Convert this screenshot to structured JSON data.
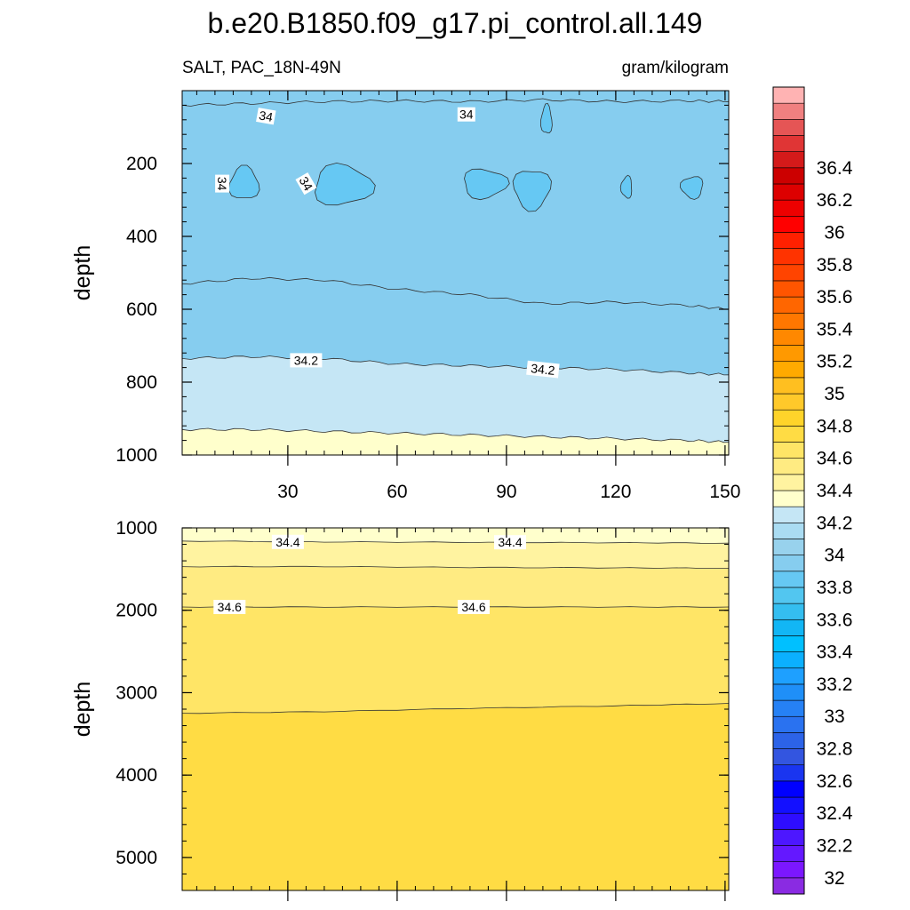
{
  "figure": {
    "title": "b.e20.B1850.f09_g17.pi_control.all.149",
    "left_string": "SALT, PAC_18N-49N",
    "right_string": "gram/kilogram"
  },
  "chart_data": [
    {
      "type": "heatmap",
      "panel": "upper",
      "variable": "SALT",
      "region": "PAC_18N-49N",
      "units": "gram/kilogram",
      "xlabel": "",
      "ylabel": "depth",
      "xlim": [
        1,
        151
      ],
      "ylim": [
        1000,
        0
      ],
      "x_ticks": [
        30,
        60,
        90,
        120,
        150
      ],
      "y_ticks": [
        200,
        400,
        600,
        800,
        1000
      ],
      "x_ticks_labeled": true,
      "contour_lines": [
        {
          "level": 34.0,
          "x": [
            1,
            20,
            40,
            60,
            80,
            100,
            120,
            140,
            151
          ],
          "depth": [
            40,
            35,
            30,
            28,
            30,
            25,
            30,
            28,
            30
          ]
        },
        {
          "level": 33.9,
          "x": [
            1,
            20,
            40,
            60,
            80,
            100,
            120,
            140,
            151
          ],
          "depth": [
            530,
            515,
            520,
            545,
            560,
            585,
            580,
            590,
            600
          ]
        },
        {
          "level": 34.2,
          "x": [
            1,
            20,
            40,
            60,
            80,
            100,
            120,
            140,
            151
          ],
          "depth": [
            735,
            730,
            735,
            750,
            755,
            760,
            765,
            775,
            780
          ]
        },
        {
          "level": 34.3,
          "x": [
            1,
            20,
            40,
            60,
            80,
            100,
            120,
            140,
            151
          ],
          "depth": [
            930,
            930,
            935,
            940,
            945,
            950,
            955,
            960,
            965
          ]
        }
      ],
      "fill_bands": [
        {
          "value": 33.9,
          "from_depth": 0,
          "to_line": 1
        },
        {
          "value": 33.95,
          "from_line": 1,
          "to_line": 2
        },
        {
          "value": 34.25,
          "from_line": 2,
          "to_line": 3
        },
        {
          "value": 34.35,
          "from_line": 3,
          "to_depth": 1000
        }
      ],
      "contour_labels": [
        {
          "text": "34",
          "x": 24,
          "depth": 70,
          "angle": 10
        },
        {
          "text": "34",
          "x": 79,
          "depth": 65,
          "angle": 0
        },
        {
          "text": "34",
          "x": 12,
          "depth": 255,
          "angle": 90
        },
        {
          "text": "34",
          "x": 35,
          "depth": 255,
          "angle": 60
        },
        {
          "text": "34.2",
          "x": 35,
          "depth": 740,
          "angle": 0
        },
        {
          "text": "34.2",
          "x": 100,
          "depth": 765,
          "angle": 6
        }
      ],
      "patches": [
        {
          "value": 33.85,
          "x": 18,
          "depth": 255,
          "rx": 4,
          "rdepth": 45
        },
        {
          "value": 33.85,
          "x": 45,
          "depth": 260,
          "rx": 8,
          "rdepth": 55
        },
        {
          "value": 33.85,
          "x": 84,
          "depth": 255,
          "rx": 6,
          "rdepth": 40
        },
        {
          "value": 33.85,
          "x": 97,
          "depth": 270,
          "rx": 5,
          "rdepth": 55
        },
        {
          "value": 33.85,
          "x": 141,
          "depth": 265,
          "rx": 3,
          "rdepth": 30
        },
        {
          "value": 33.85,
          "x": 123,
          "depth": 265,
          "rx": 1.5,
          "rdepth": 30
        },
        {
          "value": 33.85,
          "x": 101,
          "depth": 80,
          "rx": 1.5,
          "rdepth": 40
        }
      ]
    },
    {
      "type": "heatmap",
      "panel": "lower",
      "variable": "SALT",
      "region": "PAC_18N-49N",
      "units": "gram/kilogram",
      "xlabel": "",
      "ylabel": "depth",
      "xlim": [
        1,
        151
      ],
      "ylim": [
        5400,
        1000
      ],
      "x_ticks": [
        30,
        60,
        90,
        120,
        150
      ],
      "y_ticks": [
        1000,
        2000,
        3000,
        4000,
        5000
      ],
      "x_ticks_labeled": false,
      "contour_lines": [
        {
          "level": 34.4,
          "x": [
            1,
            40,
            80,
            120,
            151
          ],
          "depth": [
            1160,
            1170,
            1175,
            1180,
            1185
          ]
        },
        {
          "level": 34.5,
          "x": [
            1,
            40,
            80,
            120,
            151
          ],
          "depth": [
            1470,
            1470,
            1480,
            1485,
            1490
          ]
        },
        {
          "level": 34.6,
          "x": [
            1,
            40,
            80,
            120,
            151
          ],
          "depth": [
            1960,
            1960,
            1960,
            1960,
            1960
          ]
        },
        {
          "level": 34.7,
          "x": [
            1,
            40,
            80,
            120,
            151
          ],
          "depth": [
            3250,
            3230,
            3190,
            3160,
            3130
          ]
        }
      ],
      "fill_bands": [
        {
          "value": 34.35,
          "from_depth": 1000,
          "to_line": 0
        },
        {
          "value": 34.45,
          "from_line": 0,
          "to_line": 1
        },
        {
          "value": 34.55,
          "from_line": 1,
          "to_line": 2
        },
        {
          "value": 34.65,
          "from_line": 2,
          "to_line": 3
        },
        {
          "value": 34.75,
          "from_line": 3,
          "to_depth": 5400
        }
      ],
      "contour_labels": [
        {
          "text": "34.4",
          "x": 30,
          "depth": 1170,
          "angle": 0
        },
        {
          "text": "34.4",
          "x": 91,
          "depth": 1175,
          "angle": 0
        },
        {
          "text": "34.6",
          "x": 14,
          "depth": 1960,
          "angle": 0
        },
        {
          "text": "34.6",
          "x": 81,
          "depth": 1960,
          "angle": 0
        }
      ]
    }
  ],
  "colorbar": {
    "min": 31.9,
    "step": 0.1,
    "colors": [
      "#8a2be2",
      "#7b17ff",
      "#6418ff",
      "#4d17ff",
      "#2e0dff",
      "#1310ff",
      "#0000ff",
      "#1a35f0",
      "#3355e0",
      "#2c63e8",
      "#2a72f0",
      "#2681f5",
      "#1f8ff8",
      "#1ea0ff",
      "#0bb0ff",
      "#00c0ff",
      "#12b6f5",
      "#34bef0",
      "#52c6f0",
      "#66c8f3",
      "#86cdef",
      "#98d2ed",
      "#aadcf2",
      "#c5e6f5",
      "#ffffcc",
      "#fff3a0",
      "#ffeb82",
      "#ffe566",
      "#ffdc44",
      "#ffd42a",
      "#ffc92a",
      "#ffbf20",
      "#ffaa00",
      "#ff9900",
      "#ff8800",
      "#ff7700",
      "#ff6600",
      "#ff5500",
      "#ff4400",
      "#ff3300",
      "#ff2000",
      "#ff0000",
      "#ee0000",
      "#dd0000",
      "#cc0000",
      "#d41a1a",
      "#e03535",
      "#e55555",
      "#f08080",
      "#ffb3b3"
    ],
    "tick_labels": [
      "32",
      "32.2",
      "32.4",
      "32.6",
      "32.8",
      "33",
      "33.2",
      "33.4",
      "33.6",
      "33.8",
      "34",
      "34.2",
      "34.4",
      "34.6",
      "34.8",
      "35",
      "35.2",
      "35.4",
      "35.6",
      "35.8",
      "36",
      "36.2",
      "36.4"
    ]
  }
}
